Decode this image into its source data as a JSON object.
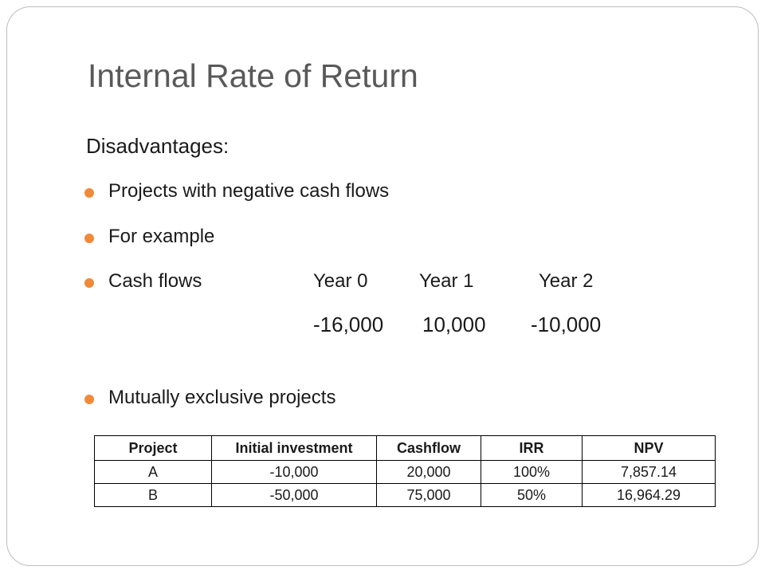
{
  "slide": {
    "title": "Internal Rate of Return",
    "heading": "Disadvantages:",
    "bullets": [
      "Projects with  negative cash flows",
      "For example"
    ],
    "cash_flows": {
      "label": "Cash flows",
      "years": [
        "Year 0",
        "Year 1",
        "Year 2"
      ],
      "values": [
        "-16,000",
        "10,000",
        "-10,000"
      ]
    },
    "last_bullet": "Mutually exclusive projects",
    "bullet_color": "#f08a3a"
  },
  "table": {
    "headers": [
      "Project",
      "Initial investment",
      "Cashflow",
      "IRR",
      "NPV"
    ],
    "rows": [
      [
        "A",
        "-10,000",
        "20,000",
        "100%",
        "7,857.14"
      ],
      [
        "B",
        "-50,000",
        "75,000",
        "50%",
        "16,964.29"
      ]
    ]
  }
}
